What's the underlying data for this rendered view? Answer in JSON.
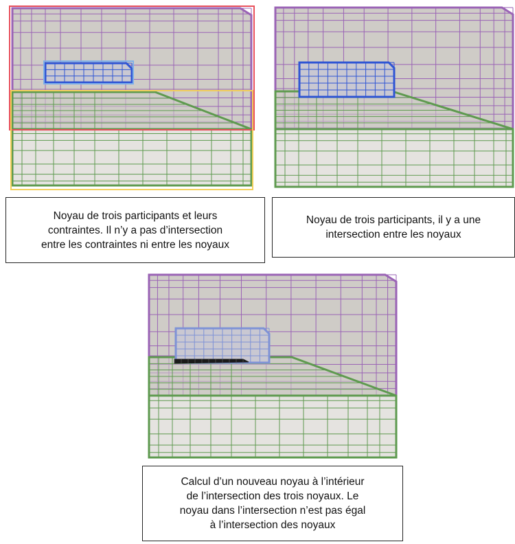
{
  "captions": {
    "top_left": "Noyau de trois participants et leurs\ncontraintes. Il n’y a pas d’intersection\nentre les contraintes ni entre les noyaux",
    "top_right": "Noyau de trois participants, il y a une\nintersection entre les noyaux",
    "bottom": "Calcul d’un nouveau noyau à l’intérieur\nde l’intersection des trois noyaux. Le\nnoyau dans l’intersection n’est pas égal\nà l’intersection des noyaux"
  },
  "colors": {
    "background_fill": "#cfccc7",
    "purple_kernel": "#9a63b5",
    "green_kernel": "#5e9a4f",
    "blue_kernel": "#2f55d4",
    "light_blue_kernel": "#7e92d6",
    "red_constraint": "#e8505b",
    "yellow_constraint": "#f3d05a",
    "result_kernel": "#1a1a1a"
  }
}
